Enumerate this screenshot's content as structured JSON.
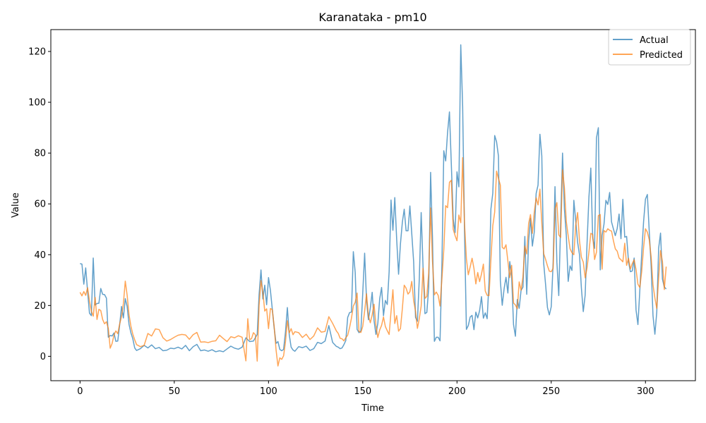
{
  "chart_data": {
    "type": "line",
    "title": "Karanataka - pm10",
    "xlabel": "Time",
    "ylabel": "Value",
    "xlim": [
      -15.5,
      326.5
    ],
    "ylim": [
      -9.6,
      128.6
    ],
    "xticks": [
      0,
      50,
      100,
      150,
      200,
      250,
      300
    ],
    "yticks": [
      0,
      20,
      40,
      60,
      80,
      100,
      120
    ],
    "grid": false,
    "legend_position": "top-right",
    "series": [
      {
        "name": "Actual",
        "color": "#1f77b4",
        "x": [
          0,
          1,
          2,
          3,
          4,
          5,
          6,
          7,
          8,
          9,
          10,
          11,
          12,
          13,
          14,
          15,
          16,
          17,
          18,
          19,
          20,
          21,
          22,
          23,
          24,
          25,
          26,
          27,
          28,
          29,
          30,
          32,
          34,
          36,
          38,
          40,
          42,
          44,
          46,
          48,
          50,
          52,
          54,
          56,
          58,
          60,
          62,
          64,
          66,
          68,
          70,
          72,
          74,
          76,
          78,
          80,
          82,
          84,
          86,
          88,
          90,
          92,
          94,
          95,
          96,
          97,
          98,
          99,
          100,
          101,
          102,
          103,
          104,
          105,
          106,
          107,
          108,
          109,
          110,
          111,
          112,
          113,
          114,
          116,
          118,
          120,
          122,
          124,
          126,
          128,
          130,
          132,
          134,
          136,
          137,
          138,
          139,
          140,
          141,
          142,
          143,
          144,
          145,
          146,
          147,
          148,
          149,
          150,
          151,
          152,
          153,
          154,
          155,
          156,
          157,
          158,
          159,
          160,
          161,
          162,
          163,
          164,
          165,
          166,
          167,
          168,
          169,
          170,
          171,
          172,
          173,
          174,
          175,
          176,
          177,
          178,
          179,
          180,
          181,
          182,
          183,
          184,
          185,
          186,
          187,
          188,
          189,
          190,
          191,
          192,
          193,
          194,
          195,
          196,
          197,
          198,
          199,
          200,
          201,
          202,
          203,
          204,
          205,
          206,
          207,
          208,
          209,
          210,
          211,
          212,
          213,
          214,
          215,
          216,
          217,
          218,
          219,
          220,
          221,
          222,
          223,
          224,
          225,
          226,
          227,
          228,
          229,
          230,
          231,
          232,
          233,
          234,
          235,
          236,
          237,
          238,
          239,
          240,
          241,
          242,
          243,
          244,
          245,
          246,
          247,
          248,
          249,
          250,
          251,
          252,
          253,
          254,
          255,
          256,
          257,
          258,
          259,
          260,
          261,
          262,
          263,
          264,
          265,
          266,
          267,
          268,
          269,
          270,
          271,
          272,
          273,
          274,
          275,
          276,
          277,
          278,
          279,
          280,
          281,
          282,
          283,
          284,
          285,
          286,
          287,
          288,
          289,
          290,
          291,
          292,
          293,
          294,
          295,
          296,
          297,
          298,
          299,
          300,
          301,
          302,
          303,
          304,
          305,
          306,
          307,
          308,
          309,
          310,
          311
        ],
        "values": [
          36.5,
          36.3,
          28.4,
          34.8,
          25.6,
          17.0,
          16.0,
          38.7,
          20.2,
          20.8,
          20.9,
          26.7,
          24.4,
          24.3,
          22.9,
          7.5,
          8.2,
          8.0,
          9.2,
          5.9,
          6.0,
          12.2,
          19.6,
          15.1,
          22.7,
          19.6,
          12.5,
          9.2,
          6.9,
          3.3,
          2.3,
          3.0,
          4.3,
          3.3,
          4.5,
          3.0,
          3.5,
          2.2,
          2.4,
          3.2,
          3.0,
          3.6,
          2.9,
          4.3,
          2.2,
          3.8,
          4.7,
          2.2,
          2.5,
          2.0,
          2.6,
          1.8,
          2.2,
          1.8,
          2.9,
          4.0,
          3.2,
          2.8,
          3.6,
          7.3,
          5.8,
          6.0,
          8.6,
          24.3,
          34.0,
          22.6,
          28.0,
          20.3,
          31.0,
          26.0,
          18.6,
          11.1,
          5.1,
          5.8,
          2.7,
          2.2,
          2.7,
          9.6,
          19.2,
          8.5,
          3.6,
          2.5,
          2.0,
          3.8,
          3.4,
          4.0,
          2.3,
          3.0,
          5.5,
          5.0,
          6.0,
          12.1,
          5.5,
          3.9,
          3.6,
          3.0,
          3.3,
          4.6,
          6.2,
          15.3,
          17.2,
          17.4,
          41.2,
          33.0,
          10.6,
          9.3,
          10.0,
          25.0,
          40.6,
          22.1,
          14.4,
          19.0,
          25.2,
          14.0,
          8.6,
          13.0,
          22.7,
          27.1,
          16.0,
          22.0,
          20.4,
          33.3,
          61.5,
          49.6,
          62.5,
          46.0,
          32.3,
          44.3,
          52.7,
          57.9,
          49.4,
          49.4,
          59.2,
          48.3,
          37.3,
          15.3,
          13.8,
          30.5,
          56.6,
          35.0,
          16.8,
          17.3,
          27.1,
          72.4,
          46.7,
          5.9,
          7.5,
          7.5,
          6.1,
          36.0,
          80.9,
          76.9,
          88.1,
          96.2,
          75.5,
          54.0,
          48.7,
          72.6,
          66.7,
          122.6,
          98.4,
          48.9,
          10.6,
          12.1,
          15.5,
          16.1,
          10.5,
          17.4,
          15.1,
          18.0,
          23.5,
          15.0,
          17.1,
          14.8,
          29.4,
          58.0,
          64.2,
          86.9,
          84.4,
          78.8,
          29.7,
          20.1,
          26.6,
          31.1,
          24.9,
          37.3,
          31.4,
          12.5,
          7.9,
          22.4,
          18.9,
          26.0,
          27.2,
          47.2,
          24.4,
          45.3,
          54.3,
          43.4,
          48.9,
          64.1,
          67.4,
          87.4,
          78.9,
          36.6,
          28.3,
          19.2,
          16.3,
          19.5,
          36.5,
          66.8,
          37.0,
          23.9,
          52.4,
          80.0,
          58.0,
          47.6,
          29.5,
          35.6,
          33.8,
          61.4,
          53.3,
          44.9,
          40.0,
          26.9,
          17.6,
          24.1,
          44.3,
          62.6,
          74.1,
          46.6,
          42.5,
          86.0,
          90.0,
          34.0,
          47.6,
          52.0,
          61.4,
          59.8,
          64.5,
          52.9,
          50.1,
          47.5,
          50.3,
          56.0,
          46.3,
          61.8,
          46.9,
          47.2,
          37.3,
          33.3,
          33.6,
          38.7,
          18.2,
          12.5,
          25.9,
          40.2,
          53.0,
          61.9,
          63.7,
          49.3,
          35.8,
          16.0,
          8.7,
          17.4,
          42.6,
          48.5,
          30.4,
          27.3,
          26.5
        ]
      },
      {
        "name": "Predicted",
        "color": "#ff7f0e",
        "x": [
          0,
          1,
          2,
          3,
          4,
          5,
          6,
          7,
          8,
          9,
          10,
          11,
          12,
          13,
          14,
          15,
          16,
          17,
          18,
          19,
          20,
          21,
          22,
          23,
          24,
          25,
          26,
          27,
          28,
          29,
          30,
          32,
          34,
          36,
          38,
          40,
          42,
          44,
          46,
          48,
          50,
          52,
          54,
          56,
          58,
          60,
          62,
          64,
          66,
          68,
          70,
          72,
          74,
          76,
          78,
          80,
          82,
          84,
          86,
          88,
          89,
          90,
          91,
          92,
          93,
          94,
          95,
          96,
          97,
          98,
          99,
          100,
          101,
          102,
          103,
          104,
          105,
          106,
          107,
          108,
          109,
          110,
          111,
          112,
          113,
          114,
          116,
          118,
          120,
          122,
          124,
          126,
          128,
          130,
          132,
          134,
          136,
          137,
          138,
          139,
          140,
          141,
          142,
          143,
          144,
          145,
          146,
          147,
          148,
          149,
          150,
          151,
          152,
          153,
          154,
          155,
          156,
          157,
          158,
          159,
          160,
          161,
          162,
          163,
          164,
          165,
          166,
          167,
          168,
          169,
          170,
          171,
          172,
          173,
          174,
          175,
          176,
          177,
          178,
          179,
          180,
          181,
          182,
          183,
          184,
          185,
          186,
          187,
          188,
          189,
          190,
          191,
          192,
          193,
          194,
          195,
          196,
          197,
          198,
          199,
          200,
          201,
          202,
          203,
          204,
          205,
          206,
          207,
          208,
          209,
          210,
          211,
          212,
          213,
          214,
          215,
          216,
          217,
          218,
          219,
          220,
          221,
          222,
          223,
          224,
          225,
          226,
          227,
          228,
          229,
          230,
          231,
          232,
          233,
          234,
          235,
          236,
          237,
          238,
          239,
          240,
          241,
          242,
          243,
          244,
          245,
          246,
          247,
          248,
          249,
          250,
          251,
          252,
          253,
          254,
          255,
          256,
          257,
          258,
          259,
          260,
          261,
          262,
          263,
          264,
          265,
          266,
          267,
          268,
          269,
          270,
          271,
          272,
          273,
          274,
          275,
          276,
          277,
          278,
          279,
          280,
          281,
          282,
          283,
          284,
          285,
          286,
          287,
          288,
          289,
          290,
          291,
          292,
          293,
          294,
          295,
          296,
          297,
          298,
          299,
          300,
          301,
          302,
          303,
          304,
          305,
          306,
          307,
          308,
          309,
          310,
          311
        ],
        "values": [
          25.2,
          23.8,
          25.5,
          24.0,
          27.0,
          21.8,
          17.8,
          15.8,
          23.2,
          14.5,
          18.5,
          18.0,
          14.5,
          12.8,
          13.6,
          11.0,
          3.2,
          5.0,
          8.4,
          10.0,
          8.9,
          12.7,
          15.6,
          20.8,
          29.6,
          24.0,
          16.3,
          11.8,
          8.7,
          6.5,
          4.6,
          3.8,
          4.3,
          9.0,
          8.0,
          10.8,
          10.5,
          7.3,
          6.0,
          6.6,
          7.5,
          8.3,
          8.6,
          8.4,
          6.7,
          8.5,
          9.4,
          5.6,
          5.7,
          5.4,
          5.9,
          6.1,
          8.3,
          7.0,
          5.8,
          7.7,
          7.3,
          8.1,
          7.5,
          -1.8,
          14.8,
          6.5,
          7.0,
          9.3,
          8.5,
          -1.9,
          20.0,
          29.8,
          25.2,
          17.8,
          18.7,
          10.9,
          18.8,
          18.4,
          11.7,
          2.5,
          -3.8,
          -0.6,
          -1.2,
          0.2,
          5.7,
          14.0,
          9.2,
          10.9,
          8.5,
          9.7,
          9.3,
          7.4,
          8.7,
          6.6,
          8.0,
          11.2,
          9.5,
          9.8,
          15.6,
          13.0,
          10.0,
          9.0,
          7.1,
          6.9,
          6.1,
          7.3,
          8.3,
          11.3,
          15.0,
          19.8,
          21.3,
          24.9,
          9.8,
          9.4,
          11.8,
          17.8,
          24.6,
          16.0,
          13.2,
          16.3,
          20.5,
          12.2,
          7.4,
          10.4,
          12.2,
          15.5,
          11.7,
          10.1,
          8.6,
          17.6,
          26.2,
          12.9,
          16.0,
          9.9,
          10.9,
          18.7,
          28.0,
          26.8,
          24.5,
          25.4,
          29.5,
          21.9,
          17.8,
          11.0,
          14.8,
          19.8,
          34.7,
          22.8,
          23.6,
          32.8,
          58.4,
          37.4,
          24.2,
          25.3,
          24.0,
          19.8,
          30.5,
          42.0,
          59.3,
          58.5,
          68.5,
          69.3,
          50.0,
          47.5,
          45.5,
          55.6,
          52.6,
          78.2,
          52.0,
          38.4,
          32.1,
          35.2,
          38.6,
          34.6,
          28.5,
          33.0,
          29.4,
          32.4,
          36.3,
          25.7,
          24.0,
          23.9,
          38.2,
          51.4,
          56.8,
          72.9,
          70.0,
          67.4,
          42.9,
          42.3,
          43.9,
          37.5,
          31.0,
          35.8,
          21.0,
          20.2,
          18.7,
          29.3,
          26.0,
          31.3,
          43.4,
          40.3,
          52.2,
          55.8,
          48.4,
          56.7,
          62.4,
          59.6,
          65.8,
          52.5,
          40.4,
          38.2,
          35.6,
          33.5,
          33.3,
          34.6,
          57.8,
          60.5,
          47.8,
          46.8,
          73.4,
          66.3,
          53.0,
          47.4,
          42.3,
          40.8,
          40.0,
          51.6,
          56.6,
          45.5,
          39.0,
          37.1,
          30.9,
          34.8,
          41.0,
          48.4,
          48.0,
          38.1,
          41.0,
          55.4,
          55.8,
          34.3,
          49.5,
          48.9,
          50.2,
          49.6,
          49.3,
          45.5,
          42.3,
          41.4,
          38.7,
          38.0,
          37.2,
          44.5,
          35.8,
          38.6,
          34.4,
          36.5,
          38.0,
          34.1,
          28.4,
          27.1,
          33.4,
          42.8,
          50.2,
          48.9,
          45.9,
          39.2,
          28.1,
          23.0,
          18.8,
          31.0,
          41.6,
          37.4,
          26.3,
          35.3
        ]
      }
    ]
  }
}
